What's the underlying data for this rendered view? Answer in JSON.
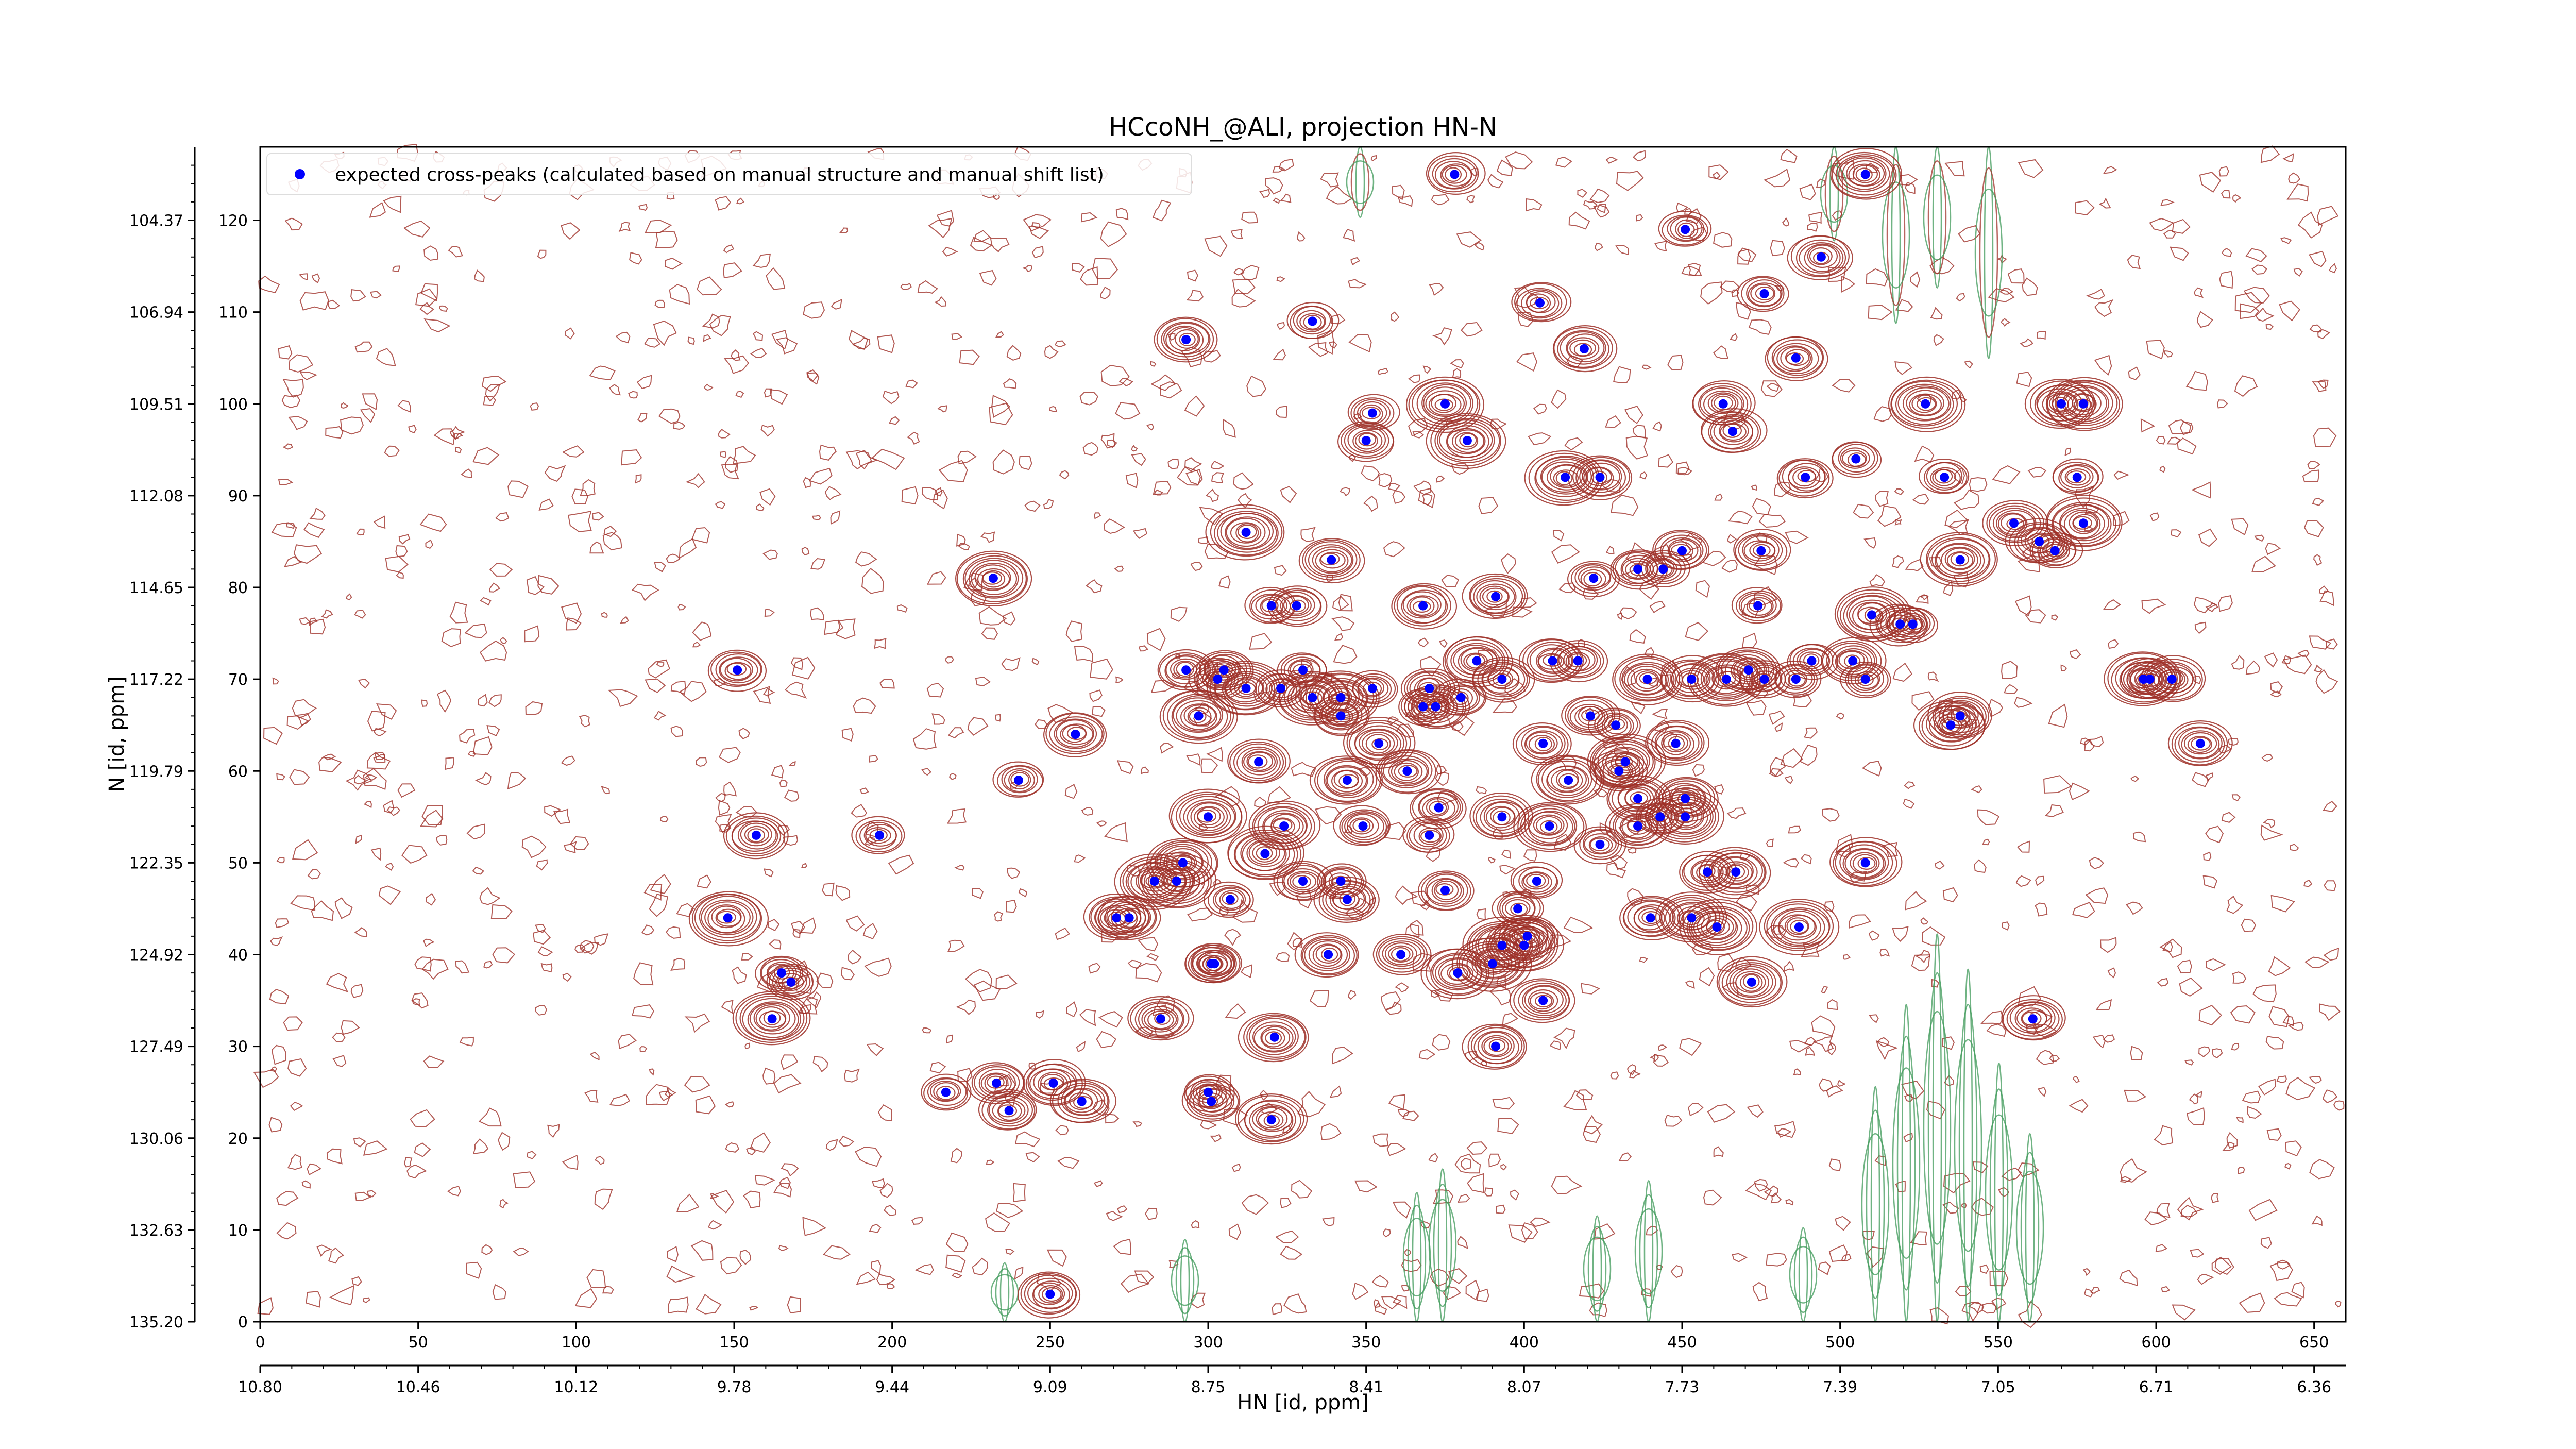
{
  "chart_data": {
    "type": "scatter",
    "title": "HCcoNH_@ALI, projection HN-N",
    "xlabel": "HN [id, ppm]",
    "ylabel": "N [id, ppm]",
    "xlim": [
      0,
      660
    ],
    "ylim": [
      0,
      128
    ],
    "bottom_index_ticks": [
      0,
      50,
      100,
      150,
      200,
      250,
      300,
      350,
      400,
      450,
      500,
      550,
      600,
      650
    ],
    "bottom_ppm_ticks": [
      "10.80",
      "10.46",
      "10.12",
      "9.78",
      "9.44",
      "9.09",
      "8.75",
      "8.41",
      "8.07",
      "7.73",
      "7.39",
      "7.05",
      "6.71",
      "6.36"
    ],
    "left_index_ticks": [
      0,
      10,
      20,
      30,
      40,
      50,
      60,
      70,
      80,
      90,
      100,
      110,
      120
    ],
    "left_ppm_ticks": [
      "135.20",
      "132.63",
      "130.06",
      "127.49",
      "124.92",
      "122.35",
      "119.79",
      "117.22",
      "114.65",
      "112.08",
      "109.51",
      "106.94",
      "104.37"
    ],
    "legend": {
      "placement": "top-left",
      "label": "expected cross-peaks (calculated based on manual structure and manual shift list)"
    },
    "series": [
      {
        "name": "expected cross-peaks (calculated based on manual structure and manual shift list)",
        "color": "#0000ff",
        "points": [
          [
            378,
            125
          ],
          [
            508,
            125
          ],
          [
            451,
            119
          ],
          [
            494,
            116
          ],
          [
            476,
            112
          ],
          [
            405,
            111
          ],
          [
            333,
            109
          ],
          [
            419,
            106
          ],
          [
            293,
            107
          ],
          [
            486,
            105
          ],
          [
            352,
            99
          ],
          [
            375,
            100
          ],
          [
            463,
            100
          ],
          [
            527,
            100
          ],
          [
            570,
            100
          ],
          [
            577,
            100
          ],
          [
            350,
            96
          ],
          [
            382,
            96
          ],
          [
            466,
            97
          ],
          [
            505,
            94
          ],
          [
            533,
            92
          ],
          [
            413,
            92
          ],
          [
            424,
            92
          ],
          [
            489,
            92
          ],
          [
            575,
            92
          ],
          [
            312,
            86
          ],
          [
            555,
            87
          ],
          [
            577,
            87
          ],
          [
            450,
            84
          ],
          [
            475,
            84
          ],
          [
            568,
            84
          ],
          [
            563,
            85
          ],
          [
            339,
            83
          ],
          [
            232,
            81
          ],
          [
            422,
            81
          ],
          [
            436,
            82
          ],
          [
            444,
            82
          ],
          [
            538,
            83
          ],
          [
            391,
            79
          ],
          [
            474,
            78
          ],
          [
            320,
            78
          ],
          [
            328,
            78
          ],
          [
            368,
            78
          ],
          [
            510,
            77
          ],
          [
            519,
            76
          ],
          [
            523,
            76
          ],
          [
            330,
            71
          ],
          [
            409,
            72
          ],
          [
            504,
            72
          ],
          [
            491,
            72
          ],
          [
            471,
            71
          ],
          [
            464,
            70
          ],
          [
            476,
            70
          ],
          [
            486,
            70
          ],
          [
            508,
            70
          ],
          [
            151,
            71
          ],
          [
            293,
            71
          ],
          [
            305,
            71
          ],
          [
            312,
            69
          ],
          [
            323,
            69
          ],
          [
            303,
            70
          ],
          [
            333,
            68
          ],
          [
            342,
            68
          ],
          [
            352,
            69
          ],
          [
            370,
            69
          ],
          [
            368,
            67
          ],
          [
            372,
            67
          ],
          [
            380,
            68
          ],
          [
            385,
            72
          ],
          [
            393,
            70
          ],
          [
            417,
            72
          ],
          [
            439,
            70
          ],
          [
            453,
            70
          ],
          [
            596,
            70
          ],
          [
            598,
            70
          ],
          [
            605,
            70
          ],
          [
            297,
            66
          ],
          [
            342,
            66
          ],
          [
            421,
            66
          ],
          [
            429,
            65
          ],
          [
            535,
            65
          ],
          [
            538,
            66
          ],
          [
            258,
            64
          ],
          [
            406,
            63
          ],
          [
            448,
            63
          ],
          [
            614,
            63
          ],
          [
            316,
            61
          ],
          [
            354,
            63
          ],
          [
            363,
            60
          ],
          [
            432,
            61
          ],
          [
            240,
            59
          ],
          [
            344,
            59
          ],
          [
            414,
            59
          ],
          [
            430,
            60
          ],
          [
            436,
            57
          ],
          [
            451,
            57
          ],
          [
            373,
            56
          ],
          [
            393,
            55
          ],
          [
            300,
            55
          ],
          [
            324,
            54
          ],
          [
            349,
            54
          ],
          [
            408,
            54
          ],
          [
            436,
            54
          ],
          [
            443,
            55
          ],
          [
            451,
            55
          ],
          [
            157,
            53
          ],
          [
            196,
            53
          ],
          [
            370,
            53
          ],
          [
            424,
            52
          ],
          [
            318,
            51
          ],
          [
            292,
            50
          ],
          [
            283,
            48
          ],
          [
            330,
            48
          ],
          [
            342,
            48
          ],
          [
            404,
            48
          ],
          [
            458,
            49
          ],
          [
            467,
            49
          ],
          [
            508,
            50
          ],
          [
            275,
            44
          ],
          [
            290,
            48
          ],
          [
            307,
            46
          ],
          [
            375,
            47
          ],
          [
            344,
            46
          ],
          [
            398,
            45
          ],
          [
            440,
            44
          ],
          [
            453,
            44
          ],
          [
            461,
            43
          ],
          [
            487,
            43
          ],
          [
            148,
            44
          ],
          [
            271,
            44
          ],
          [
            393,
            41
          ],
          [
            400,
            41
          ],
          [
            401,
            42
          ],
          [
            338,
            40
          ],
          [
            361,
            40
          ],
          [
            302,
            39
          ],
          [
            301,
            39
          ],
          [
            165,
            38
          ],
          [
            168,
            37
          ],
          [
            379,
            38
          ],
          [
            390,
            39
          ],
          [
            472,
            37
          ],
          [
            162,
            33
          ],
          [
            285,
            33
          ],
          [
            406,
            35
          ],
          [
            561,
            33
          ],
          [
            321,
            31
          ],
          [
            391,
            30
          ],
          [
            233,
            26
          ],
          [
            251,
            26
          ],
          [
            301,
            24
          ],
          [
            300,
            25
          ],
          [
            217,
            25
          ],
          [
            237,
            23
          ],
          [
            260,
            24
          ],
          [
            320,
            22
          ],
          [
            250,
            3
          ]
        ]
      }
    ]
  }
}
